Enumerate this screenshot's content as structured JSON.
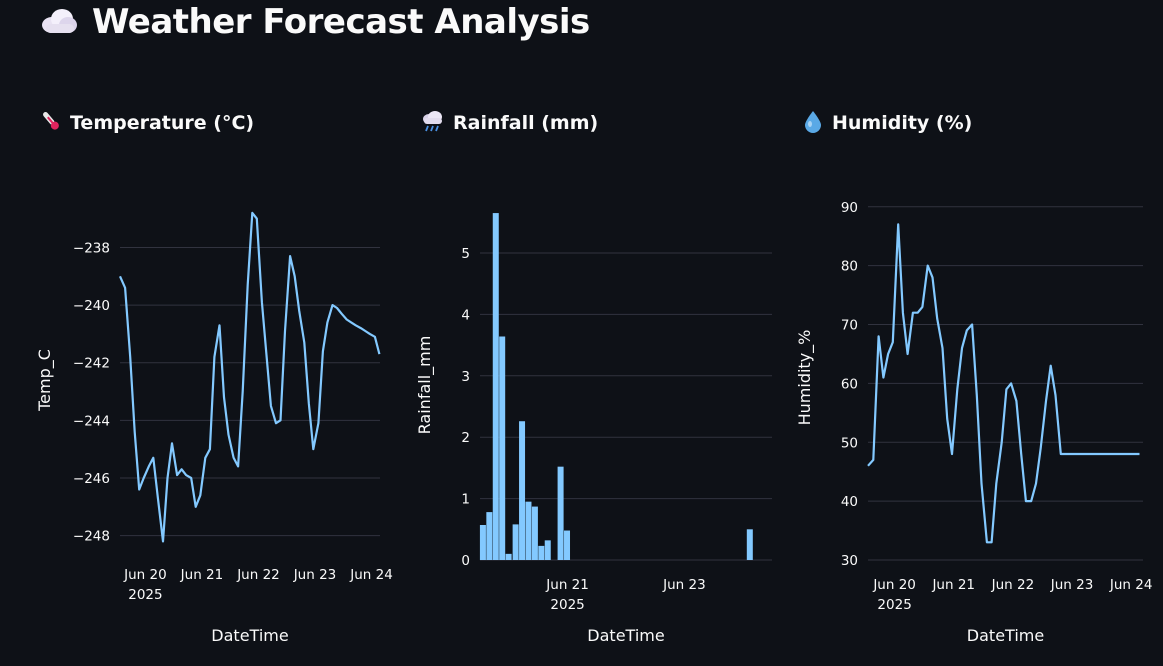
{
  "page": {
    "title": "Weather Forecast Analysis",
    "title_icon": "cloud-icon"
  },
  "sections": [
    {
      "heading": "Temperature (°C)",
      "icon": "thermometer-icon"
    },
    {
      "heading": "Rainfall (mm)",
      "icon": "rain-cloud-icon"
    },
    {
      "heading": "Humidity (%)",
      "icon": "droplet-icon"
    }
  ],
  "colors": {
    "line": "#83c9ff",
    "bar": "#83c9ff",
    "grid": "#31333f",
    "background": "#0e1117"
  },
  "chart_data": [
    {
      "type": "line",
      "title": "Temperature (°C)",
      "xlabel": "DateTime",
      "ylabel": "Temp_C",
      "x_ticks": [
        "Jun 20",
        "Jun 21",
        "Jun 22",
        "Jun 23",
        "Jun 24"
      ],
      "x_tick_sublabel": "2025",
      "y_ticks": [
        -238,
        -240,
        -242,
        -244,
        -246,
        -248
      ],
      "ylim": [
        -248.5,
        -236.7
      ],
      "x_range_days": [
        19.55,
        24.15
      ],
      "x": [
        19.55,
        19.64,
        19.73,
        19.81,
        19.89,
        19.97,
        20.06,
        20.14,
        20.22,
        20.31,
        20.39,
        20.47,
        20.56,
        20.64,
        20.72,
        20.81,
        20.89,
        20.97,
        21.06,
        21.14,
        21.22,
        21.31,
        21.39,
        21.47,
        21.56,
        21.64,
        21.72,
        21.81,
        21.89,
        21.97,
        22.06,
        22.14,
        22.22,
        22.31,
        22.39,
        22.47,
        22.56,
        22.64,
        22.72,
        22.81,
        22.89,
        22.97,
        23.06,
        23.14,
        23.22,
        23.31,
        23.39,
        23.47,
        23.56,
        23.64,
        23.72,
        23.81,
        23.89,
        23.97,
        24.06,
        24.14
      ],
      "y": [
        -239.0,
        -239.4,
        -241.8,
        -244.4,
        -246.4,
        -246.0,
        -245.6,
        -245.3,
        -246.7,
        -248.2,
        -246.0,
        -244.8,
        -245.9,
        -245.7,
        -245.9,
        -246.0,
        -247.0,
        -246.6,
        -245.3,
        -245.0,
        -241.8,
        -240.7,
        -243.2,
        -244.5,
        -245.3,
        -245.6,
        -243.0,
        -239.3,
        -236.8,
        -237.0,
        -239.9,
        -241.7,
        -243.5,
        -244.1,
        -244.0,
        -240.9,
        -238.3,
        -239.0,
        -240.2,
        -241.3,
        -243.4,
        -245.0,
        -244.1,
        -241.6,
        -240.6,
        -240.0,
        -240.1,
        -240.3,
        -240.5,
        -240.6,
        -240.7,
        -240.8,
        -240.9,
        -241.0,
        -241.1,
        -241.7
      ]
    },
    {
      "type": "bar",
      "title": "Rainfall (mm)",
      "xlabel": "DateTime",
      "ylabel": "Rainfall_mm",
      "x_ticks": [
        "Jun 21",
        "Jun 23"
      ],
      "x_tick_sublabel": "2025",
      "y_ticks": [
        0,
        1,
        2,
        3,
        4,
        5
      ],
      "ylim": [
        0,
        5.7
      ],
      "x_range_days": [
        19.5,
        24.5
      ],
      "x": [
        19.55,
        19.66,
        19.77,
        19.88,
        19.99,
        20.11,
        20.22,
        20.33,
        20.44,
        20.55,
        20.66,
        20.88,
        20.99,
        24.12
      ],
      "values": [
        0.57,
        0.78,
        5.65,
        3.64,
        0.1,
        0.58,
        2.26,
        0.95,
        0.87,
        0.23,
        0.32,
        1.52,
        0.48,
        0.5
      ]
    },
    {
      "type": "line",
      "title": "Humidity (%)",
      "xlabel": "DateTime",
      "ylabel": "Humidity_%",
      "x_ticks": [
        "Jun 20",
        "Jun 21",
        "Jun 22",
        "Jun 23",
        "Jun 24"
      ],
      "x_tick_sublabel": "2025",
      "y_ticks": [
        90,
        80,
        70,
        60,
        50,
        40,
        30
      ],
      "ylim": [
        30,
        92
      ],
      "x_range_days": [
        19.55,
        24.2
      ],
      "x": [
        19.55,
        19.64,
        19.73,
        19.81,
        19.89,
        19.97,
        20.06,
        20.14,
        20.22,
        20.31,
        20.39,
        20.47,
        20.56,
        20.64,
        20.72,
        20.81,
        20.89,
        20.97,
        21.06,
        21.14,
        21.22,
        21.31,
        21.39,
        21.47,
        21.56,
        21.64,
        21.72,
        21.81,
        21.89,
        21.97,
        22.06,
        22.14,
        22.22,
        22.31,
        22.39,
        22.47,
        22.56,
        22.64,
        22.72,
        22.81,
        22.89,
        22.97,
        23.06,
        23.14,
        23.22,
        23.31,
        23.39,
        23.47,
        23.56,
        23.64,
        23.72,
        23.81,
        23.89,
        23.97,
        24.06,
        24.14
      ],
      "y": [
        46,
        47,
        68,
        61,
        65,
        67,
        87,
        72,
        65,
        72,
        72,
        73,
        80,
        78,
        71,
        66,
        54,
        48,
        59,
        66,
        69,
        70,
        58,
        43,
        33,
        33,
        43,
        50,
        59,
        60,
        57,
        48,
        40,
        40,
        43,
        49,
        57,
        63,
        58,
        48,
        48,
        48,
        48,
        48,
        48,
        48,
        48,
        48,
        48,
        48,
        48,
        48,
        48,
        48,
        48,
        48
      ]
    }
  ]
}
